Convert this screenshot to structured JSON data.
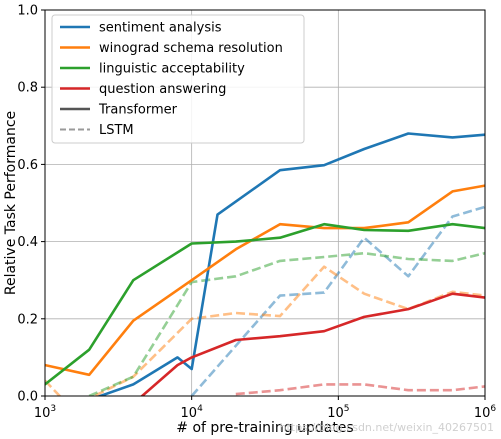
{
  "chart_data": {
    "type": "line",
    "xlabel": "# of pre-training updates",
    "ylabel": "Relative Task Performance",
    "xscale": "log",
    "xlim": [
      1000,
      1000000
    ],
    "ylim": [
      0,
      1.0
    ],
    "x_ticks": [
      {
        "value": 1000,
        "base": "10",
        "exp": "3"
      },
      {
        "value": 10000,
        "base": "10",
        "exp": "4"
      },
      {
        "value": 100000,
        "base": "10",
        "exp": "5"
      },
      {
        "value": 1000000,
        "base": "10",
        "exp": "6"
      }
    ],
    "y_ticks": [
      {
        "value": 0.0,
        "label": "0.0"
      },
      {
        "value": 0.2,
        "label": "0.2"
      },
      {
        "value": 0.4,
        "label": "0.4"
      },
      {
        "value": 0.6,
        "label": "0.6"
      },
      {
        "value": 0.8,
        "label": "0.8"
      },
      {
        "value": 1.0,
        "label": "1.0"
      }
    ],
    "grid": true,
    "legend_position": "top-left",
    "legend": [
      {
        "label": "sentiment analysis",
        "color": "#1f77b4",
        "style": "solid"
      },
      {
        "label": "winograd schema resolution",
        "color": "#ff7f0e",
        "style": "solid"
      },
      {
        "label": "linguistic acceptability",
        "color": "#2ca02c",
        "style": "solid"
      },
      {
        "label": "question answering",
        "color": "#d62728",
        "style": "solid"
      },
      {
        "label": "Transformer",
        "color": "#555555",
        "style": "solid"
      },
      {
        "label": "LSTM",
        "color": "#9a9a9a",
        "style": "dashed"
      }
    ],
    "series": [
      {
        "task": "sentiment analysis",
        "model": "Transformer",
        "color": "#1f77b4",
        "style": "solid",
        "x": [
          1000,
          2000,
          4000,
          8000,
          10000,
          15000,
          40000,
          80000,
          150000,
          300000,
          600000,
          1000000
        ],
        "y": [
          -0.05,
          -0.01,
          0.03,
          0.1,
          0.07,
          0.47,
          0.585,
          0.598,
          0.64,
          0.68,
          0.67,
          0.677
        ]
      },
      {
        "task": "winograd schema resolution",
        "model": "Transformer",
        "color": "#ff7f0e",
        "style": "solid",
        "x": [
          1000,
          2000,
          4000,
          10000,
          20000,
          40000,
          80000,
          150000,
          300000,
          600000,
          1000000
        ],
        "y": [
          0.08,
          0.055,
          0.195,
          0.3,
          0.38,
          0.445,
          0.435,
          0.435,
          0.45,
          0.53,
          0.545
        ]
      },
      {
        "task": "linguistic acceptability",
        "model": "Transformer",
        "color": "#2ca02c",
        "style": "solid",
        "x": [
          1000,
          2000,
          4000,
          10000,
          20000,
          40000,
          80000,
          150000,
          300000,
          600000,
          1000000
        ],
        "y": [
          0.03,
          0.12,
          0.3,
          0.395,
          0.4,
          0.41,
          0.445,
          0.43,
          0.428,
          0.445,
          0.435
        ]
      },
      {
        "task": "question answering",
        "model": "Transformer",
        "color": "#d62728",
        "style": "solid",
        "x": [
          4000,
          8000,
          10000,
          20000,
          40000,
          80000,
          150000,
          300000,
          600000,
          1000000
        ],
        "y": [
          -0.02,
          0.08,
          0.1,
          0.145,
          0.155,
          0.168,
          0.205,
          0.225,
          0.265,
          0.255
        ]
      },
      {
        "task": "sentiment analysis",
        "model": "LSTM",
        "color": "#1f77b4",
        "style": "dashed",
        "x": [
          10000,
          20000,
          40000,
          80000,
          150000,
          300000,
          600000,
          1000000
        ],
        "y": [
          0.0,
          0.13,
          0.26,
          0.268,
          0.41,
          0.31,
          0.465,
          0.49
        ]
      },
      {
        "task": "winograd schema resolution",
        "model": "LSTM",
        "color": "#ff7f0e",
        "style": "dashed",
        "x": [
          1000,
          1500,
          4000,
          10000,
          20000,
          40000,
          80000,
          150000,
          300000,
          600000,
          1000000
        ],
        "y": [
          0.04,
          -0.03,
          0.05,
          0.2,
          0.215,
          0.207,
          0.335,
          0.265,
          0.225,
          0.27,
          0.26
        ]
      },
      {
        "task": "linguistic acceptability",
        "model": "LSTM",
        "color": "#2ca02c",
        "style": "dashed",
        "x": [
          2000,
          4000,
          10000,
          20000,
          40000,
          80000,
          150000,
          300000,
          600000,
          1000000
        ],
        "y": [
          0.0,
          0.05,
          0.295,
          0.31,
          0.35,
          0.36,
          0.37,
          0.355,
          0.35,
          0.37
        ]
      },
      {
        "task": "question answering",
        "model": "LSTM",
        "color": "#d62728",
        "style": "dashed",
        "x": [
          20000,
          40000,
          80000,
          150000,
          300000,
          600000,
          1000000
        ],
        "y": [
          0.005,
          0.015,
          0.03,
          0.03,
          0.015,
          0.015,
          0.025
        ]
      }
    ]
  },
  "watermark": "https://blog.csdn.net/weixin_40267501"
}
